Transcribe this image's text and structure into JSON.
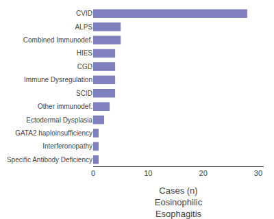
{
  "chart_data": {
    "type": "bar",
    "orientation": "horizontal",
    "categories": [
      "Specific Antibody Deficiency",
      "Interferonopathy",
      "GATA2 haploinsufficiency",
      "Ectodermal Dysplasia",
      "Other immunodef.",
      "SCID",
      "Immune Dysregulation",
      "CGD",
      "HIES",
      "Combined Immunodef.",
      "ALPS",
      "CVID"
    ],
    "values": [
      1,
      1,
      1,
      2,
      3,
      4,
      4,
      4,
      4,
      5,
      5,
      28
    ],
    "color": "#8080bf",
    "xlabel": "Cases (n)\nEosinophilic\nEsophagitis",
    "xlim": [
      0,
      31
    ],
    "xticks": [
      0,
      10,
      20,
      30
    ],
    "grid": false
  }
}
